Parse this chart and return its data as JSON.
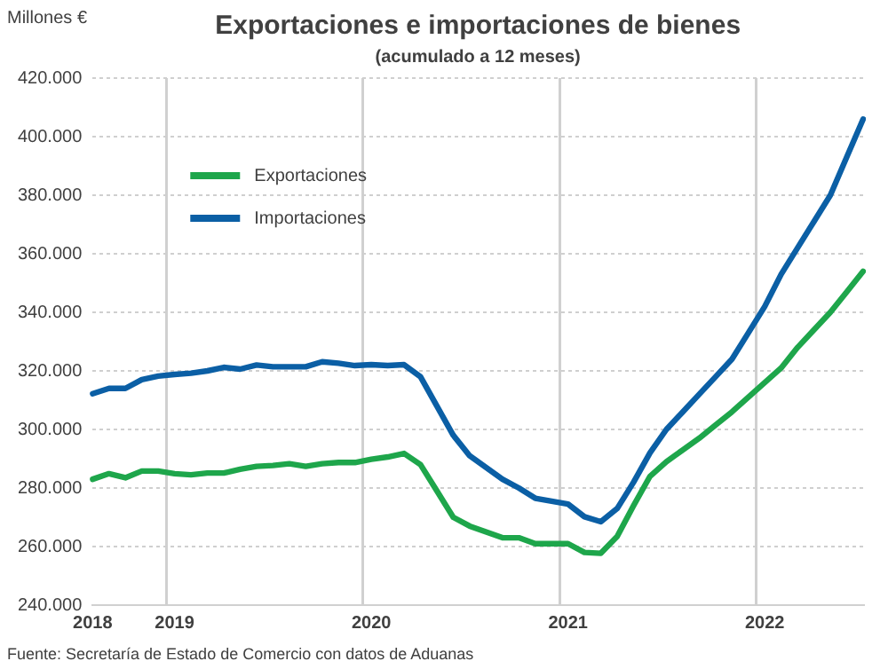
{
  "chart_data": {
    "type": "line",
    "title": "Exportaciones e importaciones de bienes",
    "subtitle": "(acumulado a 12 meses)",
    "ylabel": "Millones €",
    "annotations": [
      "Fuente: Secretaría de Estado de Comercio con datos de Aduanas"
    ],
    "categories": [
      "2018",
      null,
      null,
      null,
      null,
      "2019",
      null,
      null,
      null,
      null,
      null,
      null,
      null,
      null,
      null,
      null,
      null,
      "2020",
      null,
      null,
      null,
      null,
      null,
      null,
      null,
      null,
      null,
      null,
      null,
      "2021",
      null,
      null,
      null,
      null,
      null,
      null,
      null,
      null,
      null,
      null,
      null,
      "2022",
      null,
      null,
      null,
      null,
      null,
      null
    ],
    "series": [
      {
        "name": "Exportaciones",
        "color": "#1ea64b",
        "values": [
          283000,
          284900,
          283500,
          285800,
          285800,
          284900,
          284500,
          285100,
          285100,
          286400,
          287400,
          287700,
          288300,
          287400,
          288300,
          288700,
          288700,
          289800,
          290600,
          291800,
          288000,
          279000,
          270000,
          267000,
          265000,
          263000,
          263000,
          261000,
          261000,
          261000,
          258000,
          257700,
          263500,
          274000,
          284000,
          289000,
          293000,
          297000,
          301500,
          306000,
          311000,
          316000,
          321000,
          328000,
          334000,
          340000,
          347000,
          354000
        ]
      },
      {
        "name": "Importaciones",
        "color": "#0b5fa5",
        "values": [
          312200,
          314000,
          314000,
          317000,
          318200,
          318800,
          319200,
          320000,
          321200,
          320600,
          322000,
          321400,
          321400,
          321400,
          323100,
          322600,
          321800,
          322100,
          321800,
          322100,
          318000,
          308000,
          298000,
          291000,
          287000,
          283000,
          280000,
          276500,
          275500,
          274500,
          270200,
          268500,
          273000,
          282000,
          292000,
          300000,
          306000,
          312000,
          318000,
          324000,
          333000,
          342000,
          353000,
          362000,
          371000,
          380000,
          393000,
          406000
        ]
      }
    ],
    "ylim": [
      240000,
      420000
    ],
    "yticks": [
      {
        "value": 240000,
        "label": "240.000"
      },
      {
        "value": 260000,
        "label": "260.000"
      },
      {
        "value": 280000,
        "label": "280.000"
      },
      {
        "value": 300000,
        "label": "300.000"
      },
      {
        "value": 320000,
        "label": "320.000"
      },
      {
        "value": 340000,
        "label": "340.000"
      },
      {
        "value": 360000,
        "label": "360.000"
      },
      {
        "value": 380000,
        "label": "380.000"
      },
      {
        "value": 400000,
        "label": "400.000"
      },
      {
        "value": 420000,
        "label": "420.000"
      }
    ],
    "grid": true,
    "legend": "top left"
  }
}
